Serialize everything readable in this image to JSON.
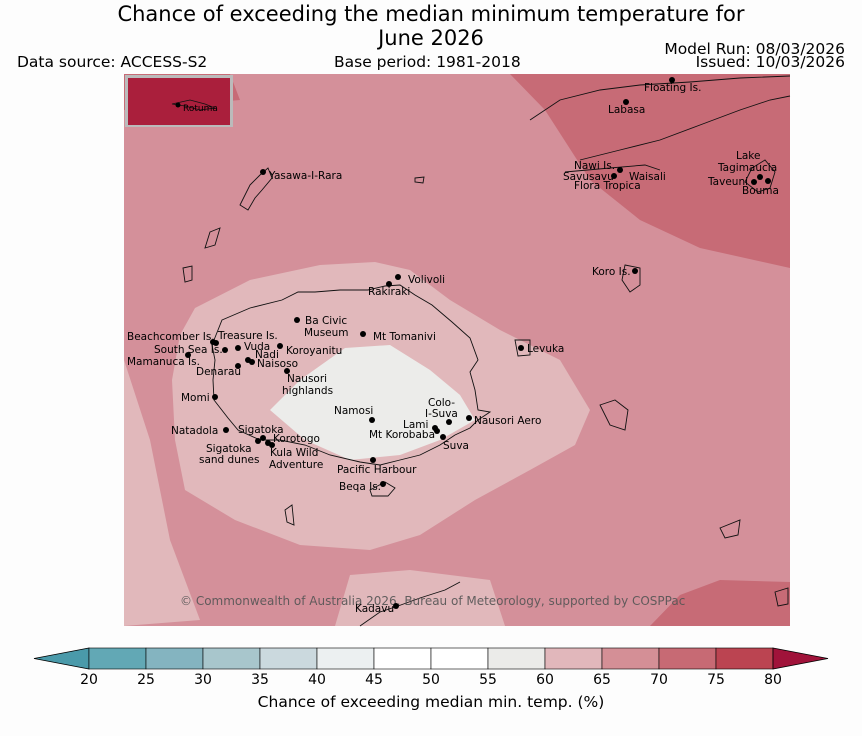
{
  "header": {
    "title": "Chance of exceeding the median minimum temperature for June 2026",
    "title_line1": "Chance of exceeding the median minimum temperature for",
    "title_line2": "June 2026",
    "data_source": "Data source: ACCESS-S2",
    "base_period": "Base period: 1981-2018",
    "model_run": "Model Run: 08/03/2026",
    "issued": "Issued: 10/03/2026"
  },
  "inset": {
    "label": "Rotuma"
  },
  "copyright": "© Commonwealth of Australia 2026, Bureau of Meteorology, supported by COSPPac",
  "places": [
    "Floating Is.",
    "Labasa",
    "Yasawa-I-Rara",
    "Nawi Is.",
    "Savusavu",
    "Waisali",
    "Flora Tropica",
    "Lake",
    "Tagimaucia",
    "Taveuni",
    "Bouma",
    "Koro Is.",
    "Volivoli",
    "Rakiraki",
    "Ba Civic",
    "Museum",
    "Beachcomber Is.",
    "Treasure Is.",
    "Mt Tomanivi",
    "South Sea Is.",
    "Vuda",
    "Koroyanitu",
    "Levuka",
    "Mamanuca Is.",
    "Nadi",
    "Naisoso",
    "Denarau",
    "Nausori",
    "highlands",
    "Momi",
    "Colo-",
    "I-Suva",
    "Namosi",
    "Nausori Aero",
    "Natadola",
    "Sigatoka",
    "Lami",
    "Mt Korobaba",
    "Korotogo",
    "Sigatoka",
    "sand dunes",
    "Kula Wild",
    "Adventure",
    "Suva",
    "Pacific Harbour",
    "Beqa Is.",
    "Kadavu"
  ],
  "legend": {
    "title": "Chance of exceeding median min. temp. (%)",
    "ticks": [
      "20",
      "25",
      "30",
      "35",
      "40",
      "45",
      "50",
      "55",
      "60",
      "65",
      "70",
      "75",
      "80"
    ],
    "colors": [
      "#62a8b5",
      "#84b4c0",
      "#a8c6cc",
      "#cbd9de",
      "#ecf0f1",
      "#ffffff",
      "#ffffff",
      "#ebebe9",
      "#e1b7bb",
      "#d48f96",
      "#c76a74",
      "#bb4451",
      "#aa1f3c"
    ],
    "under_color": "#4a9aaa",
    "over_color": "#a0133a"
  },
  "map_fill": {
    "class_60_65": "#e1b8bb",
    "class_65_70": "#d4909a",
    "class_70_75": "#c76b76",
    "class_55_60": "#ececea",
    "inset_fill": "#aa1f3c"
  }
}
